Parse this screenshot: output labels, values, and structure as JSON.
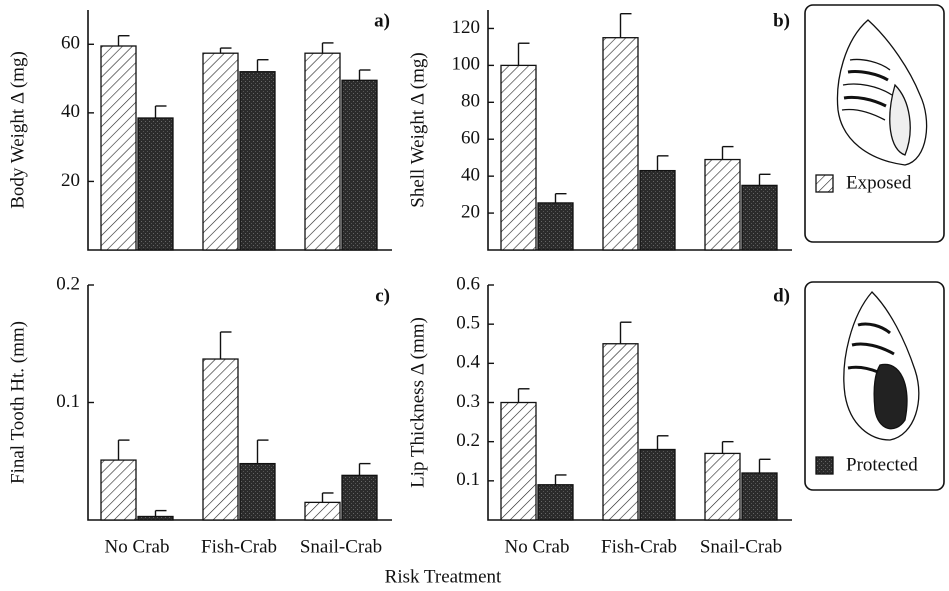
{
  "x_label": "Risk Treatment",
  "legend": [
    {
      "name": "Exposed",
      "pattern": "hatch"
    },
    {
      "name": "Protected",
      "pattern": "dark"
    }
  ],
  "chart_data": [
    {
      "type": "bar",
      "panel": "a)",
      "ylabel": "Body Weight Δ (mg)",
      "ylim": [
        0,
        70
      ],
      "yticks": [
        20,
        40,
        60
      ],
      "series": [
        {
          "pattern": "hatch",
          "values": [
            59.5,
            57.4,
            57.4
          ],
          "errors": [
            3,
            1.5,
            3
          ]
        },
        {
          "pattern": "dark",
          "values": [
            38.5,
            52,
            49.5
          ],
          "errors": [
            3.5,
            3.5,
            3
          ]
        }
      ]
    },
    {
      "type": "bar",
      "panel": "b)",
      "ylabel": "Shell Weight Δ (mg)",
      "ylim": [
        0,
        130
      ],
      "yticks": [
        20,
        40,
        60,
        80,
        100,
        120
      ],
      "series": [
        {
          "pattern": "hatch",
          "values": [
            100,
            115,
            49
          ],
          "errors": [
            12,
            13,
            7
          ]
        },
        {
          "pattern": "dark",
          "values": [
            25.5,
            43,
            35
          ],
          "errors": [
            5,
            8,
            6
          ]
        }
      ]
    },
    {
      "type": "bar",
      "panel": "c)",
      "ylabel": "Final Tooth Ht. (mm)",
      "ylim": [
        0,
        0.2
      ],
      "yticks": [
        0.1,
        0.2
      ],
      "categories": [
        "No Crab",
        "Fish-Crab",
        "Snail-Crab"
      ],
      "series": [
        {
          "pattern": "hatch",
          "values": [
            0.051,
            0.137,
            0.015
          ],
          "errors": [
            0.017,
            0.023,
            0.008
          ]
        },
        {
          "pattern": "dark",
          "values": [
            0.003,
            0.048,
            0.038
          ],
          "errors": [
            0.005,
            0.02,
            0.01
          ]
        }
      ]
    },
    {
      "type": "bar",
      "panel": "d)",
      "ylabel": "Lip Thickness Δ (mm)",
      "ylim": [
        0,
        0.6
      ],
      "yticks": [
        0.1,
        0.2,
        0.3,
        0.4,
        0.5,
        0.6
      ],
      "categories": [
        "No Crab",
        "Fish-Crab",
        "Snail-Crab"
      ],
      "series": [
        {
          "pattern": "hatch",
          "values": [
            0.3,
            0.45,
            0.17
          ],
          "errors": [
            0.035,
            0.055,
            0.03
          ]
        },
        {
          "pattern": "dark",
          "values": [
            0.09,
            0.18,
            0.12
          ],
          "errors": [
            0.025,
            0.035,
            0.035
          ]
        }
      ]
    }
  ]
}
